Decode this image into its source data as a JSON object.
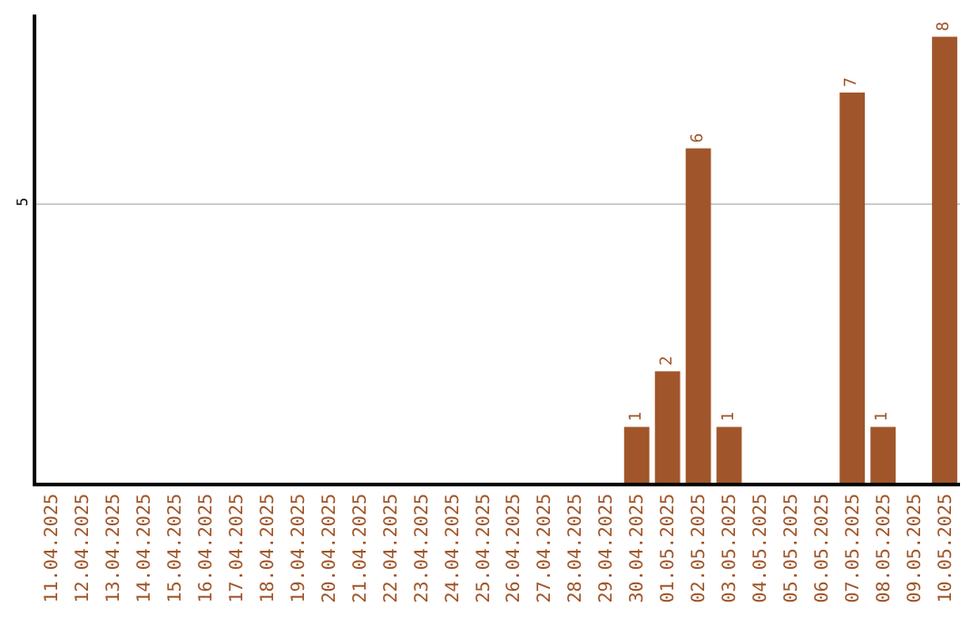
{
  "chart_data": {
    "type": "bar",
    "categories": [
      "11.04.2025",
      "12.04.2025",
      "13.04.2025",
      "14.04.2025",
      "15.04.2025",
      "16.04.2025",
      "17.04.2025",
      "18.04.2025",
      "19.04.2025",
      "20.04.2025",
      "21.04.2025",
      "22.04.2025",
      "23.04.2025",
      "24.04.2025",
      "25.04.2025",
      "26.04.2025",
      "27.04.2025",
      "28.04.2025",
      "29.04.2025",
      "30.04.2025",
      "01.05.2025",
      "02.05.2025",
      "03.05.2025",
      "04.05.2025",
      "05.05.2025",
      "06.05.2025",
      "07.05.2025",
      "08.05.2025",
      "09.05.2025",
      "10.05.2025"
    ],
    "values": [
      null,
      null,
      null,
      null,
      null,
      null,
      null,
      null,
      null,
      null,
      null,
      null,
      null,
      null,
      null,
      null,
      null,
      null,
      null,
      1,
      2,
      6,
      1,
      null,
      null,
      null,
      7,
      1,
      null,
      8
    ],
    "color": "#a0562a",
    "ylim": [
      0,
      8.4
    ],
    "yticks": [
      5
    ],
    "grid": "y",
    "data_labels": true,
    "legend": false
  }
}
